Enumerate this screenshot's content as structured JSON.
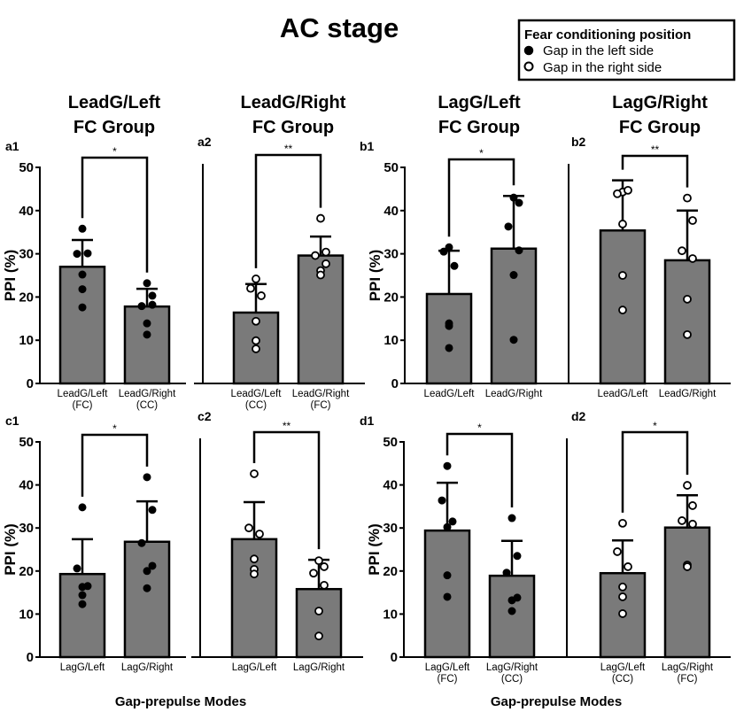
{
  "figure": {
    "title": "AC stage",
    "xlabel": "Gap-prepulse Modes",
    "ylabel": "PPI (%)"
  },
  "legend": {
    "title": "Fear conditioning position",
    "items": [
      {
        "label": "Gap in the left side",
        "marker": "filled-circle"
      },
      {
        "label": "Gap in the right side",
        "marker": "open-circle"
      }
    ]
  },
  "group_titles": [
    {
      "line1": "LeadG/Left",
      "line2": "FC Group"
    },
    {
      "line1": "LeadG/Right",
      "line2": "FC Group"
    },
    {
      "line1": "LagG/Left",
      "line2": "FC Group"
    },
    {
      "line1": "LagG/Right",
      "line2": "FC Group"
    }
  ],
  "colors": {
    "bar": "#7a7a7a",
    "outline": "#000000",
    "filled_marker": "#000000",
    "open_marker": "#ffffff"
  },
  "chart_data": [
    {
      "type": "bar",
      "panel": "a1",
      "ylabel": "PPI (%)",
      "ylim": [
        0,
        50
      ],
      "yticks": [
        0,
        10,
        20,
        30,
        40,
        50
      ],
      "marker": "filled",
      "significance": "*",
      "show_yaxis": true,
      "categories": [
        {
          "line1": "LeadG/Left",
          "line2": "(FC)"
        },
        {
          "line1": "LeadG/Right",
          "line2": "(CC)"
        }
      ],
      "means": [
        27.0,
        17.8
      ],
      "errors": [
        6.2,
        4.1
      ],
      "points": [
        [
          35.8,
          30.0,
          30.1,
          25.2,
          21.8,
          17.6
        ],
        [
          23.2,
          20.3,
          17.9,
          18.2,
          13.9,
          11.3
        ]
      ]
    },
    {
      "type": "bar",
      "panel": "a2",
      "ylim": [
        0,
        50
      ],
      "marker": "open",
      "significance": "**",
      "show_yaxis": false,
      "categories": [
        {
          "line1": "LeadG/Left",
          "line2": "(CC)"
        },
        {
          "line1": "LeadG/Right",
          "line2": "(FC)"
        }
      ],
      "means": [
        16.4,
        29.6
      ],
      "errors": [
        6.6,
        4.4
      ],
      "points": [
        [
          24.2,
          22.0,
          20.3,
          14.4,
          9.9,
          8.0
        ],
        [
          38.2,
          30.4,
          29.6,
          27.7,
          26.1,
          25.1
        ]
      ]
    },
    {
      "type": "bar",
      "panel": "b1",
      "ylabel": "PPI (%)",
      "ylim": [
        0,
        50
      ],
      "yticks": [
        0,
        10,
        20,
        30,
        40,
        50
      ],
      "marker": "filled",
      "significance": "*",
      "show_yaxis": true,
      "categories": [
        {
          "line1": "LeadG/Left",
          "line2": ""
        },
        {
          "line1": "LeadG/Right",
          "line2": ""
        }
      ],
      "means": [
        20.7,
        31.2
      ],
      "errors": [
        10.0,
        12.2
      ],
      "points": [
        [
          31.5,
          30.5,
          27.2,
          13.9,
          13.3,
          8.2
        ],
        [
          43.0,
          41.8,
          36.3,
          30.8,
          25.1,
          10.1
        ]
      ]
    },
    {
      "type": "bar",
      "panel": "b2",
      "ylim": [
        0,
        50
      ],
      "marker": "open",
      "significance": "**",
      "show_yaxis": false,
      "categories": [
        {
          "line1": "LeadG/Left",
          "line2": ""
        },
        {
          "line1": "LeadG/Right",
          "line2": ""
        }
      ],
      "means": [
        35.4,
        28.5
      ],
      "errors": [
        11.6,
        11.5
      ],
      "points": [
        [
          44.3,
          43.9,
          44.7,
          36.9,
          25.0,
          17.0
        ],
        [
          42.9,
          37.7,
          30.7,
          28.9,
          19.5,
          11.3
        ]
      ]
    },
    {
      "type": "bar",
      "panel": "c1",
      "ylabel": "PPI (%)",
      "ylim": [
        0,
        50
      ],
      "yticks": [
        0,
        10,
        20,
        30,
        40,
        50
      ],
      "marker": "filled",
      "significance": "*",
      "show_yaxis": true,
      "categories": [
        {
          "line1": "LagG/Left",
          "line2": ""
        },
        {
          "line1": "LagG/Right",
          "line2": ""
        }
      ],
      "means": [
        19.3,
        26.8
      ],
      "errors": [
        8.1,
        9.4
      ],
      "points": [
        [
          34.8,
          20.6,
          16.5,
          16.3,
          14.4,
          12.3
        ],
        [
          41.8,
          34.2,
          26.5,
          21.2,
          20.0,
          16.0
        ]
      ]
    },
    {
      "type": "bar",
      "panel": "c2",
      "ylim": [
        0,
        50
      ],
      "marker": "open",
      "significance": "**",
      "show_yaxis": false,
      "categories": [
        {
          "line1": "LagG/Left",
          "line2": ""
        },
        {
          "line1": "LagG/Right",
          "line2": ""
        }
      ],
      "means": [
        27.4,
        15.8
      ],
      "errors": [
        8.6,
        6.8
      ],
      "points": [
        [
          42.6,
          30.0,
          28.6,
          22.8,
          20.4,
          19.3
        ],
        [
          22.4,
          21.0,
          19.5,
          16.7,
          10.7,
          4.9
        ]
      ]
    },
    {
      "type": "bar",
      "panel": "d1",
      "ylabel": "PPI (%)",
      "ylim": [
        0,
        50
      ],
      "yticks": [
        0,
        10,
        20,
        30,
        40,
        50
      ],
      "marker": "filled",
      "significance": "*",
      "show_yaxis": true,
      "categories": [
        {
          "line1": "LagG/Left",
          "line2": "(FC)"
        },
        {
          "line1": "LagG/Right",
          "line2": "(CC)"
        }
      ],
      "means": [
        29.4,
        18.9
      ],
      "errors": [
        11.1,
        8.1
      ],
      "points": [
        [
          44.4,
          36.4,
          31.5,
          30.2,
          19.0,
          14.0
        ],
        [
          32.3,
          23.5,
          19.6,
          13.8,
          13.2,
          10.7
        ]
      ]
    },
    {
      "type": "bar",
      "panel": "d2",
      "ylim": [
        0,
        50
      ],
      "marker": "open",
      "significance": "*",
      "show_yaxis": false,
      "categories": [
        {
          "line1": "LagG/Left",
          "line2": "(CC)"
        },
        {
          "line1": "LagG/Right",
          "line2": "(FC)"
        }
      ],
      "means": [
        19.5,
        30.1
      ],
      "errors": [
        7.6,
        7.5
      ],
      "points": [
        [
          31.1,
          24.5,
          21.0,
          16.3,
          14.0,
          10.1
        ],
        [
          39.9,
          35.2,
          31.7,
          30.9,
          21.4,
          21.0
        ]
      ]
    }
  ]
}
